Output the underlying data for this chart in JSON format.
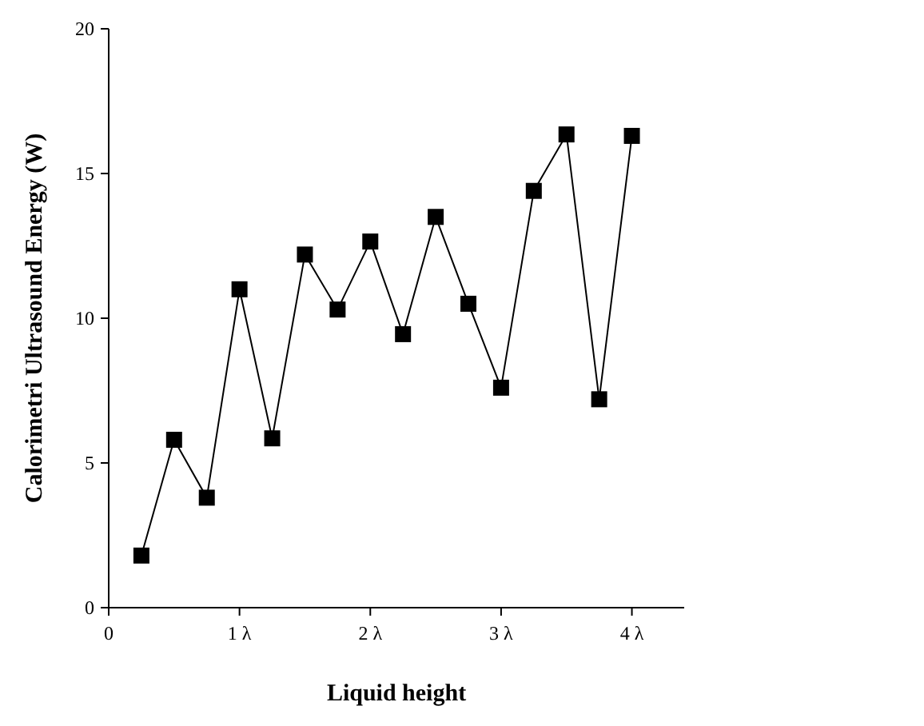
{
  "chart_data": {
    "type": "line",
    "xlabel": "Liquid height",
    "ylabel": "Calorimetri Ultrasound Energy (W)",
    "x": [
      0.25,
      0.5,
      0.75,
      1,
      1.25,
      1.5,
      1.75,
      2,
      2.25,
      2.5,
      2.75,
      3,
      3.25,
      3.5,
      3.75,
      4
    ],
    "series": [
      {
        "color": "#000000",
        "values": [
          1.8,
          5.8,
          3.8,
          11.0,
          5.85,
          12.2,
          10.3,
          12.65,
          9.45,
          13.5,
          10.5,
          7.6,
          14.4,
          16.35,
          7.2,
          16.3
        ]
      }
    ],
    "xlim": [
      0,
      4.4
    ],
    "xticks": [
      0,
      {
        "value": 1,
        "label": "1 λ"
      },
      {
        "value": 2,
        "label": "2 λ"
      },
      {
        "value": 3,
        "label": "3 λ"
      },
      {
        "value": 4,
        "label": "4 λ"
      }
    ],
    "ylim": [
      0,
      20
    ],
    "yticks": [
      0,
      5,
      10,
      15,
      20
    ],
    "marker": "square",
    "line_style": "solid"
  }
}
